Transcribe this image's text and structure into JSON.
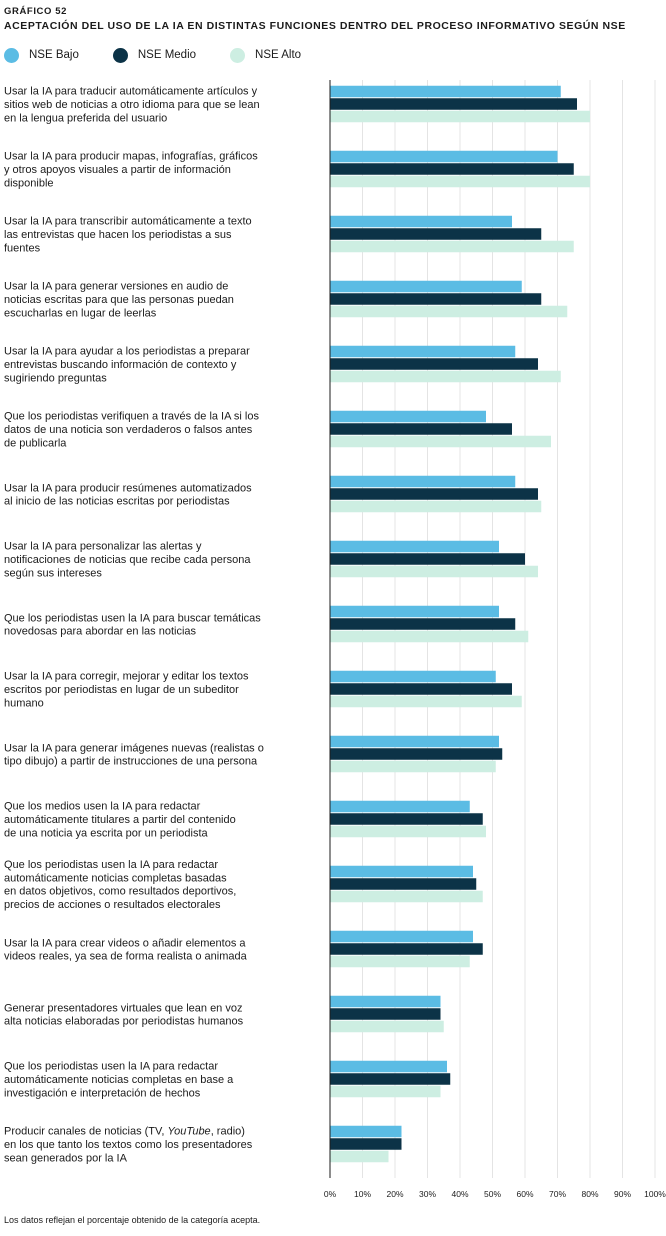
{
  "header": {
    "kicker": "GRÁFICO 52",
    "title": "ACEPTACIÓN DEL USO DE LA IA EN DISTINTAS FUNCIONES DENTRO DEL PROCESO INFORMATIVO SEGÚN NSE"
  },
  "legend": [
    {
      "name": "NSE Bajo",
      "color": "#5bbce4"
    },
    {
      "name": "NSE Medio",
      "color": "#0c3347"
    },
    {
      "name": "NSE Alto",
      "color": "#cdeee2"
    }
  ],
  "footnote": "Los datos reflejan el porcentaje obtenido de la categoría acepta.",
  "chart_data": {
    "type": "bar",
    "orientation": "horizontal",
    "title": "ACEPTACIÓN DEL USO DE LA IA EN DISTINTAS FUNCIONES DENTRO DEL PROCESO INFORMATIVO SEGÚN NSE",
    "xlim": [
      0,
      100
    ],
    "ticks": [
      "0%",
      "10%",
      "20%",
      "30%",
      "40%",
      "50%",
      "60%",
      "70%",
      "80%",
      "90%",
      "100%"
    ],
    "grid": true,
    "legend_position": "top-left",
    "categories": [
      [
        "Usar la IA para traducir automáticamente artículos y",
        "sitios web de noticias a otro idioma para que se lean",
        "en la lengua preferida del usuario"
      ],
      [
        "Usar la IA para producir mapas, infografías, gráficos",
        "y otros apoyos visuales a partir de información",
        "disponible"
      ],
      [
        "Usar la IA para transcribir automáticamente a texto",
        "las entrevistas que hacen los periodistas a sus",
        "fuentes"
      ],
      [
        "Usar la IA para generar versiones en audio de",
        "noticias escritas para que las personas puedan",
        "escucharlas en lugar de leerlas"
      ],
      [
        "Usar la IA para ayudar a los periodistas a preparar",
        "entrevistas buscando información de contexto y",
        "sugiriendo preguntas"
      ],
      [
        "Que los periodistas verifiquen a través de la IA si los",
        "datos de una noticia son verdaderos o falsos antes",
        "de publicarla"
      ],
      [
        "Usar la IA para producir resúmenes automatizados",
        "al inicio de las noticias escritas por periodistas"
      ],
      [
        "Usar la IA para personalizar las alertas y",
        "notificaciones de noticias que recibe cada persona",
        "según sus intereses"
      ],
      [
        "Que los periodistas usen la IA para buscar temáticas",
        "novedosas para abordar en las noticias"
      ],
      [
        "Usar la IA para corregir, mejorar y editar los textos",
        "escritos por periodistas en lugar de un subeditor",
        "humano"
      ],
      [
        "Usar la IA para generar imágenes nuevas (realistas o",
        "tipo dibujo) a partir de instrucciones de una persona"
      ],
      [
        "Que los medios usen la IA para redactar",
        "automáticamente titulares a partir del contenido",
        "de una noticia ya escrita por un periodista"
      ],
      [
        "Que los periodistas usen la IA para redactar",
        "automáticamente noticias completas basadas",
        "en datos objetivos, como resultados deportivos,",
        "precios de acciones o resultados electorales"
      ],
      [
        "Usar la IA para crear videos o añadir elementos a",
        "videos reales, ya sea de forma realista o animada"
      ],
      [
        "Generar presentadores virtuales que lean en voz",
        "alta noticias elaboradas por periodistas humanos"
      ],
      [
        "Que los periodistas usen la IA para redactar",
        "automáticamente noticias completas en base a",
        "investigación e interpretación de hechos"
      ],
      [
        "Producir canales de noticias (TV, YouTube, radio)",
        "en los que tanto los textos como los presentadores",
        "sean generados por la IA"
      ]
    ],
    "series": [
      {
        "name": "NSE Bajo",
        "values": [
          71,
          70,
          56,
          59,
          57,
          48,
          57,
          52,
          52,
          51,
          52,
          43,
          44,
          44,
          34,
          36,
          22
        ]
      },
      {
        "name": "NSE Medio",
        "values": [
          76,
          75,
          65,
          65,
          64,
          56,
          64,
          60,
          57,
          56,
          53,
          47,
          45,
          47,
          34,
          37,
          22
        ]
      },
      {
        "name": "NSE Alto",
        "values": [
          80,
          80,
          75,
          73,
          71,
          68,
          65,
          64,
          61,
          59,
          51,
          48,
          47,
          43,
          35,
          34,
          18
        ]
      }
    ]
  }
}
